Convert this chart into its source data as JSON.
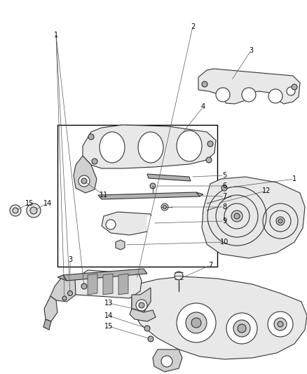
{
  "bg_color": "#ffffff",
  "line_color": "#333333",
  "label_color": "#000000",
  "part_fill": "#e8e8e8",
  "part_fill2": "#d0d0d0",
  "part_fill_dark": "#b0b0b0",
  "lw_part": 0.8,
  "lw_label": 0.5,
  "font_size": 7.0,
  "fig_w": 4.38,
  "fig_h": 5.33,
  "dpi": 100
}
